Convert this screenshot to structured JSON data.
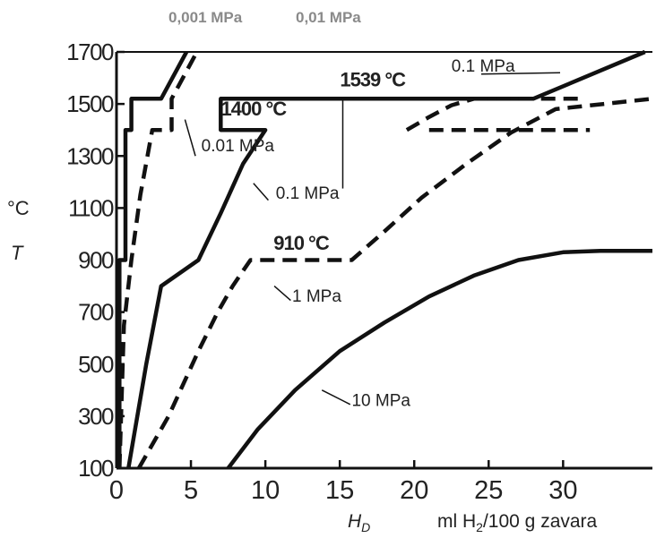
{
  "chart_data": {
    "type": "line",
    "top_labels": [
      "0,001 MPa",
      "0,01 MPa"
    ],
    "ylabel_symbol": "T",
    "ylabel_unit": "°C",
    "xlabel_symbol": "H",
    "xlabel_subscript": "D",
    "xlabel_unit_pre": "ml H",
    "xlabel_unit_sub": "2",
    "xlabel_unit_post": "/100 g zavara",
    "xlim": [
      0,
      36
    ],
    "ylim": [
      100,
      1700
    ],
    "xticks": [
      0,
      5,
      10,
      15,
      20,
      25,
      30
    ],
    "yticks": [
      100,
      300,
      500,
      700,
      900,
      1100,
      1300,
      1500,
      1700
    ],
    "tick_labels_x": [
      "0",
      "5",
      "10",
      "15",
      "20",
      "25",
      "30"
    ],
    "tick_labels_y": [
      "100",
      "300",
      "500",
      "700",
      "900",
      "1100",
      "1300",
      "1500",
      "1700"
    ],
    "reference_temps": [
      {
        "text": "1539 °C",
        "x": 17.2,
        "y": 1568
      },
      {
        "text": "1400 °C",
        "x": 9.2,
        "y": 1455
      },
      {
        "text": "910 °C",
        "x": 12.4,
        "y": 940
      }
    ],
    "annotations": [
      {
        "text": "0.1 MPa",
        "x": 22.5,
        "y": 1625
      },
      {
        "text": "0.01 MPa",
        "x": 5.7,
        "y": 1318
      },
      {
        "text": "0.1 MPa",
        "x": 10.7,
        "y": 1135
      },
      {
        "text": "1 MPa",
        "x": 11.8,
        "y": 740
      },
      {
        "text": "10 MPa",
        "x": 15.8,
        "y": 340
      }
    ],
    "series": [
      {
        "style": "solid",
        "x": [
          0.2,
          0.2,
          0.6,
          0.6,
          1.0,
          1.0,
          3.0,
          4.7
        ],
        "y": [
          100,
          900,
          900,
          1400,
          1400,
          1520,
          1520,
          1700
        ]
      },
      {
        "style": "dashed",
        "x": [
          0.2,
          0.5,
          1.0,
          1.6,
          2.4,
          3.7,
          3.7,
          5.4
        ],
        "y": [
          100,
          650,
          900,
          1150,
          1400,
          1400,
          1520,
          1700
        ]
      },
      {
        "style": "solid",
        "x": [
          0.8,
          2.0,
          3.0,
          5.5,
          5.5,
          7.0,
          8.5,
          10.0,
          10.0,
          7.0,
          7.0,
          28.0,
          35.5
        ],
        "y": [
          100,
          500,
          800,
          900,
          900,
          1080,
          1270,
          1400,
          1400,
          1400,
          1520,
          1520,
          1700
        ]
      },
      {
        "style": "dashed",
        "x": [
          1.5,
          3.5,
          5.5,
          6.8,
          7.8,
          8.4,
          9.0,
          9.0,
          15.8,
          18.0,
          20.5,
          23.5,
          26.5,
          29.5,
          36.0
        ],
        "y": [
          100,
          300,
          550,
          700,
          800,
          850,
          900,
          900,
          900,
          1010,
          1140,
          1270,
          1390,
          1480,
          1520
        ]
      },
      {
        "style": "dashed",
        "x": [
          19.5,
          21.0,
          22.5,
          24.0
        ],
        "y": [
          1400,
          1450,
          1495,
          1520
        ]
      },
      {
        "style": "dashed",
        "x": [
          21.0,
          31.8
        ],
        "y": [
          1400,
          1400
        ]
      },
      {
        "style": "dashed",
        "x": [
          24.0,
          31.0
        ],
        "y": [
          1520,
          1520
        ]
      },
      {
        "style": "solid",
        "x": [
          7.5,
          9.5,
          12.0,
          15.0,
          18.0,
          21.0,
          24.0,
          27.0,
          30.0,
          32.5,
          36.0
        ],
        "y": [
          100,
          250,
          400,
          550,
          660,
          760,
          840,
          900,
          930,
          935,
          935
        ]
      }
    ]
  }
}
